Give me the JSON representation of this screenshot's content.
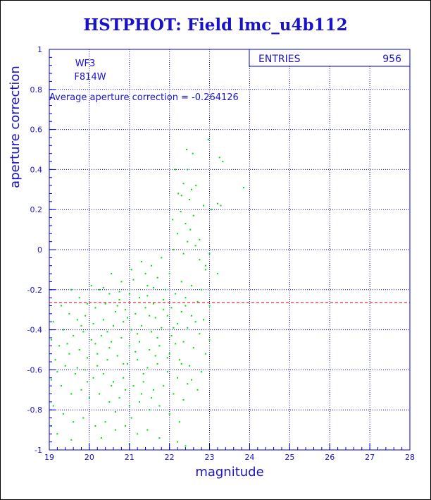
{
  "title": "HSTPHOT: Field lmc_u4b112",
  "colors": {
    "text": "#1a12c8",
    "frame": "#0000cc",
    "points": "#00dd00",
    "reference_line": "#cc0000"
  },
  "chart_data": {
    "type": "scatter",
    "title": "HSTPHOT: Field lmc_u4b112",
    "xlabel": "magnitude",
    "ylabel": "aperture correction",
    "xlim": [
      19,
      28
    ],
    "ylim": [
      -1,
      1
    ],
    "x_ticks": [
      "19",
      "20",
      "21",
      "22",
      "23",
      "24",
      "25",
      "26",
      "27",
      "28"
    ],
    "y_ticks": [
      "-1",
      "-0.8",
      "-0.6",
      "-0.4",
      "-0.2",
      "0",
      "0.2",
      "0.4",
      "0.6",
      "0.8",
      "1"
    ],
    "grid": true,
    "annotations": [
      "WF3",
      "F814W"
    ],
    "average_label": "Average aperture correction =",
    "average_value": "-0.264126",
    "reference_line_y": -0.264126,
    "stats_box": {
      "label": "ENTRIES",
      "value": "956"
    },
    "point_color": "#00dd00",
    "points": [
      [
        22.58,
        0.48
      ],
      [
        22.43,
        0.5
      ],
      [
        22.15,
        0.4
      ],
      [
        22.45,
        0.4
      ],
      [
        23.25,
        0.46
      ],
      [
        22.97,
        0.55
      ],
      [
        23.33,
        0.44
      ],
      [
        23.85,
        0.31
      ],
      [
        23.2,
        0.23
      ],
      [
        23.28,
        0.22
      ],
      [
        22.35,
        0.33
      ],
      [
        22.55,
        0.3
      ],
      [
        22.66,
        0.32
      ],
      [
        22.5,
        0.25
      ],
      [
        22.3,
        0.27
      ],
      [
        22.08,
        0.15
      ],
      [
        22.28,
        0.19
      ],
      [
        22.4,
        0.13
      ],
      [
        22.6,
        0.17
      ],
      [
        22.85,
        0.22
      ],
      [
        23.05,
        0.2
      ],
      [
        22.2,
        0.08
      ],
      [
        22.45,
        0.04
      ],
      [
        22.1,
        0.0
      ],
      [
        22.35,
        -0.02
      ],
      [
        22.65,
        0.02
      ],
      [
        22.75,
        -0.05
      ],
      [
        23.0,
        -0.02
      ],
      [
        22.9,
        -0.1
      ],
      [
        23.2,
        -0.12
      ],
      [
        21.8,
        -0.04
      ],
      [
        21.55,
        -0.08
      ],
      [
        21.3,
        -0.06
      ],
      [
        22.52,
        0.1
      ],
      [
        22.22,
        0.28
      ],
      [
        21.05,
        -0.1
      ],
      [
        21.4,
        -0.12
      ],
      [
        21.7,
        -0.14
      ],
      [
        22.0,
        -0.12
      ],
      [
        22.3,
        -0.16
      ],
      [
        22.55,
        -0.18
      ],
      [
        22.8,
        -0.2
      ],
      [
        20.55,
        -0.12
      ],
      [
        20.8,
        -0.16
      ],
      [
        21.1,
        -0.15
      ],
      [
        21.45,
        -0.18
      ],
      [
        21.9,
        -0.2
      ],
      [
        22.15,
        -0.22
      ],
      [
        22.4,
        -0.24
      ],
      [
        22.7,
        -0.26
      ],
      [
        23.0,
        -0.28
      ],
      [
        20.05,
        -0.18
      ],
      [
        20.25,
        -0.2
      ],
      [
        20.5,
        -0.22
      ],
      [
        20.75,
        -0.25
      ],
      [
        21.0,
        -0.22
      ],
      [
        21.25,
        -0.24
      ],
      [
        21.6,
        -0.27
      ],
      [
        21.85,
        -0.25
      ],
      [
        22.05,
        -0.29
      ],
      [
        22.3,
        -0.31
      ],
      [
        22.55,
        -0.33
      ],
      [
        22.85,
        -0.35
      ],
      [
        19.55,
        -0.2
      ],
      [
        19.75,
        -0.24
      ],
      [
        19.95,
        -0.27
      ],
      [
        20.15,
        -0.29
      ],
      [
        20.4,
        -0.27
      ],
      [
        20.65,
        -0.31
      ],
      [
        20.9,
        -0.3
      ],
      [
        21.15,
        -0.32
      ],
      [
        21.4,
        -0.29
      ],
      [
        21.65,
        -0.34
      ],
      [
        21.95,
        -0.33
      ],
      [
        22.2,
        -0.37
      ],
      [
        22.45,
        -0.39
      ],
      [
        22.75,
        -0.42
      ],
      [
        23.0,
        -0.45
      ],
      [
        19.3,
        -0.28
      ],
      [
        19.5,
        -0.32
      ],
      [
        19.7,
        -0.35
      ],
      [
        19.9,
        -0.33
      ],
      [
        20.1,
        -0.37
      ],
      [
        20.35,
        -0.35
      ],
      [
        20.6,
        -0.38
      ],
      [
        20.85,
        -0.36
      ],
      [
        21.05,
        -0.4
      ],
      [
        21.3,
        -0.38
      ],
      [
        21.55,
        -0.41
      ],
      [
        21.8,
        -0.39
      ],
      [
        22.05,
        -0.43
      ],
      [
        22.35,
        -0.46
      ],
      [
        22.6,
        -0.49
      ],
      [
        22.9,
        -0.52
      ],
      [
        19.1,
        -0.36
      ],
      [
        19.35,
        -0.4
      ],
      [
        19.6,
        -0.43
      ],
      [
        19.85,
        -0.41
      ],
      [
        20.05,
        -0.45
      ],
      [
        20.3,
        -0.43
      ],
      [
        20.55,
        -0.46
      ],
      [
        20.8,
        -0.44
      ],
      [
        21.0,
        -0.48
      ],
      [
        21.25,
        -0.46
      ],
      [
        21.5,
        -0.5
      ],
      [
        21.75,
        -0.48
      ],
      [
        22.0,
        -0.52
      ],
      [
        22.25,
        -0.55
      ],
      [
        22.5,
        -0.58
      ],
      [
        22.8,
        -0.61
      ],
      [
        19.05,
        -0.45
      ],
      [
        19.25,
        -0.48
      ],
      [
        19.5,
        -0.52
      ],
      [
        19.75,
        -0.5
      ],
      [
        19.95,
        -0.54
      ],
      [
        20.2,
        -0.52
      ],
      [
        20.45,
        -0.55
      ],
      [
        20.7,
        -0.53
      ],
      [
        20.95,
        -0.57
      ],
      [
        21.2,
        -0.55
      ],
      [
        21.45,
        -0.59
      ],
      [
        21.7,
        -0.57
      ],
      [
        21.95,
        -0.61
      ],
      [
        22.2,
        -0.64
      ],
      [
        22.45,
        -0.67
      ],
      [
        22.7,
        -0.7
      ],
      [
        19.15,
        -0.55
      ],
      [
        19.4,
        -0.58
      ],
      [
        19.65,
        -0.62
      ],
      [
        19.9,
        -0.6
      ],
      [
        20.1,
        -0.64
      ],
      [
        20.35,
        -0.62
      ],
      [
        20.6,
        -0.66
      ],
      [
        20.85,
        -0.64
      ],
      [
        21.1,
        -0.68
      ],
      [
        21.35,
        -0.66
      ],
      [
        21.6,
        -0.7
      ],
      [
        21.85,
        -0.68
      ],
      [
        22.1,
        -0.72
      ],
      [
        22.35,
        -0.75
      ],
      [
        19.05,
        -0.65
      ],
      [
        19.3,
        -0.68
      ],
      [
        19.55,
        -0.72
      ],
      [
        19.8,
        -0.7
      ],
      [
        20.0,
        -0.74
      ],
      [
        20.25,
        -0.72
      ],
      [
        20.5,
        -0.76
      ],
      [
        20.75,
        -0.74
      ],
      [
        21.0,
        -0.78
      ],
      [
        21.25,
        -0.76
      ],
      [
        21.5,
        -0.8
      ],
      [
        21.75,
        -0.78
      ],
      [
        22.0,
        -0.82
      ],
      [
        22.25,
        -0.86
      ],
      [
        19.1,
        -0.78
      ],
      [
        19.35,
        -0.82
      ],
      [
        19.6,
        -0.86
      ],
      [
        19.85,
        -0.84
      ],
      [
        20.15,
        -0.88
      ],
      [
        20.4,
        -0.86
      ],
      [
        20.65,
        -0.9
      ],
      [
        20.9,
        -0.88
      ],
      [
        21.2,
        -0.92
      ],
      [
        21.45,
        -0.9
      ],
      [
        21.75,
        -0.94
      ],
      [
        22.2,
        -0.96
      ],
      [
        22.4,
        -0.98
      ],
      [
        19.05,
        -0.88
      ],
      [
        19.2,
        -0.92
      ],
      [
        19.55,
        -0.95
      ],
      [
        20.3,
        -0.94
      ],
      [
        21.0,
        -0.97
      ],
      [
        20.75,
        -0.21
      ],
      [
        21.45,
        -0.23
      ],
      [
        20.95,
        -0.34
      ],
      [
        21.7,
        -0.44
      ],
      [
        21.15,
        -0.51
      ],
      [
        20.45,
        -0.41
      ],
      [
        20.2,
        -0.58
      ],
      [
        21.35,
        -0.62
      ],
      [
        20.9,
        -0.7
      ],
      [
        21.55,
        -0.74
      ],
      [
        20.65,
        -0.81
      ],
      [
        21.95,
        -0.54
      ],
      [
        22.15,
        -0.47
      ],
      [
        21.85,
        -0.3
      ],
      [
        21.6,
        -0.19
      ],
      [
        22.4,
        -0.28
      ],
      [
        22.65,
        -0.36
      ],
      [
        20.15,
        -0.47
      ],
      [
        19.8,
        -0.38
      ],
      [
        19.45,
        -0.47
      ],
      [
        19.7,
        -0.59
      ],
      [
        20.55,
        -0.68
      ],
      [
        21.05,
        -0.84
      ],
      [
        22.55,
        -0.65
      ],
      [
        22.3,
        -0.57
      ],
      [
        21.2,
        -0.42
      ],
      [
        20.7,
        -0.28
      ],
      [
        20.35,
        -0.19
      ],
      [
        21.5,
        -0.33
      ],
      [
        22.1,
        -0.39
      ],
      [
        21.3,
        -0.72
      ],
      [
        20.85,
        -0.57
      ],
      [
        19.95,
        -0.66
      ],
      [
        19.2,
        -0.61
      ],
      [
        21.65,
        -0.53
      ],
      [
        20.5,
        -0.49
      ],
      [
        22.9,
        -0.08
      ],
      [
        22.75,
        0.05
      ]
    ]
  }
}
